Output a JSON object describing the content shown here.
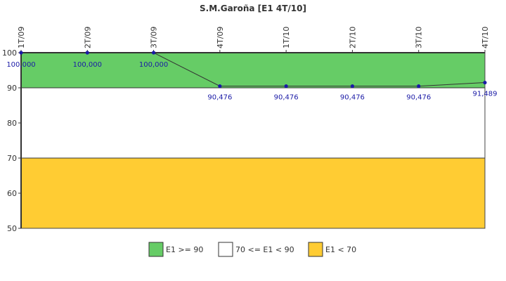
{
  "chart_data": {
    "type": "line",
    "title": "S.M.Garoña [E1 4T/10]",
    "categories": [
      "1T/09",
      "2T/09",
      "3T/09",
      "4T/09",
      "1T/10",
      "2T/10",
      "3T/10",
      "4T/10"
    ],
    "series": [
      {
        "values": [
          100.0,
          100.0,
          100.0,
          90.476,
          90.476,
          90.476,
          90.476,
          91.489
        ],
        "labels": [
          "100,000",
          "100,000",
          "100,000",
          "90,476",
          "90,476",
          "90,476",
          "90,476",
          "91,489"
        ],
        "color": "#1a1aa6"
      }
    ],
    "ylim": [
      50,
      100
    ],
    "yticks": [
      "100",
      "90",
      "80",
      "70",
      "60",
      "50"
    ],
    "bands": [
      {
        "from": 90,
        "to": 100,
        "color": "#66cc66",
        "label": "E1 >= 90"
      },
      {
        "from": 70,
        "to": 90,
        "color": "#ffffff",
        "label": "70 <= E1 < 90"
      },
      {
        "from": 50,
        "to": 70,
        "color": "#ffcc33",
        "label": "E1 < 70"
      }
    ],
    "legend_position": "bottom"
  }
}
